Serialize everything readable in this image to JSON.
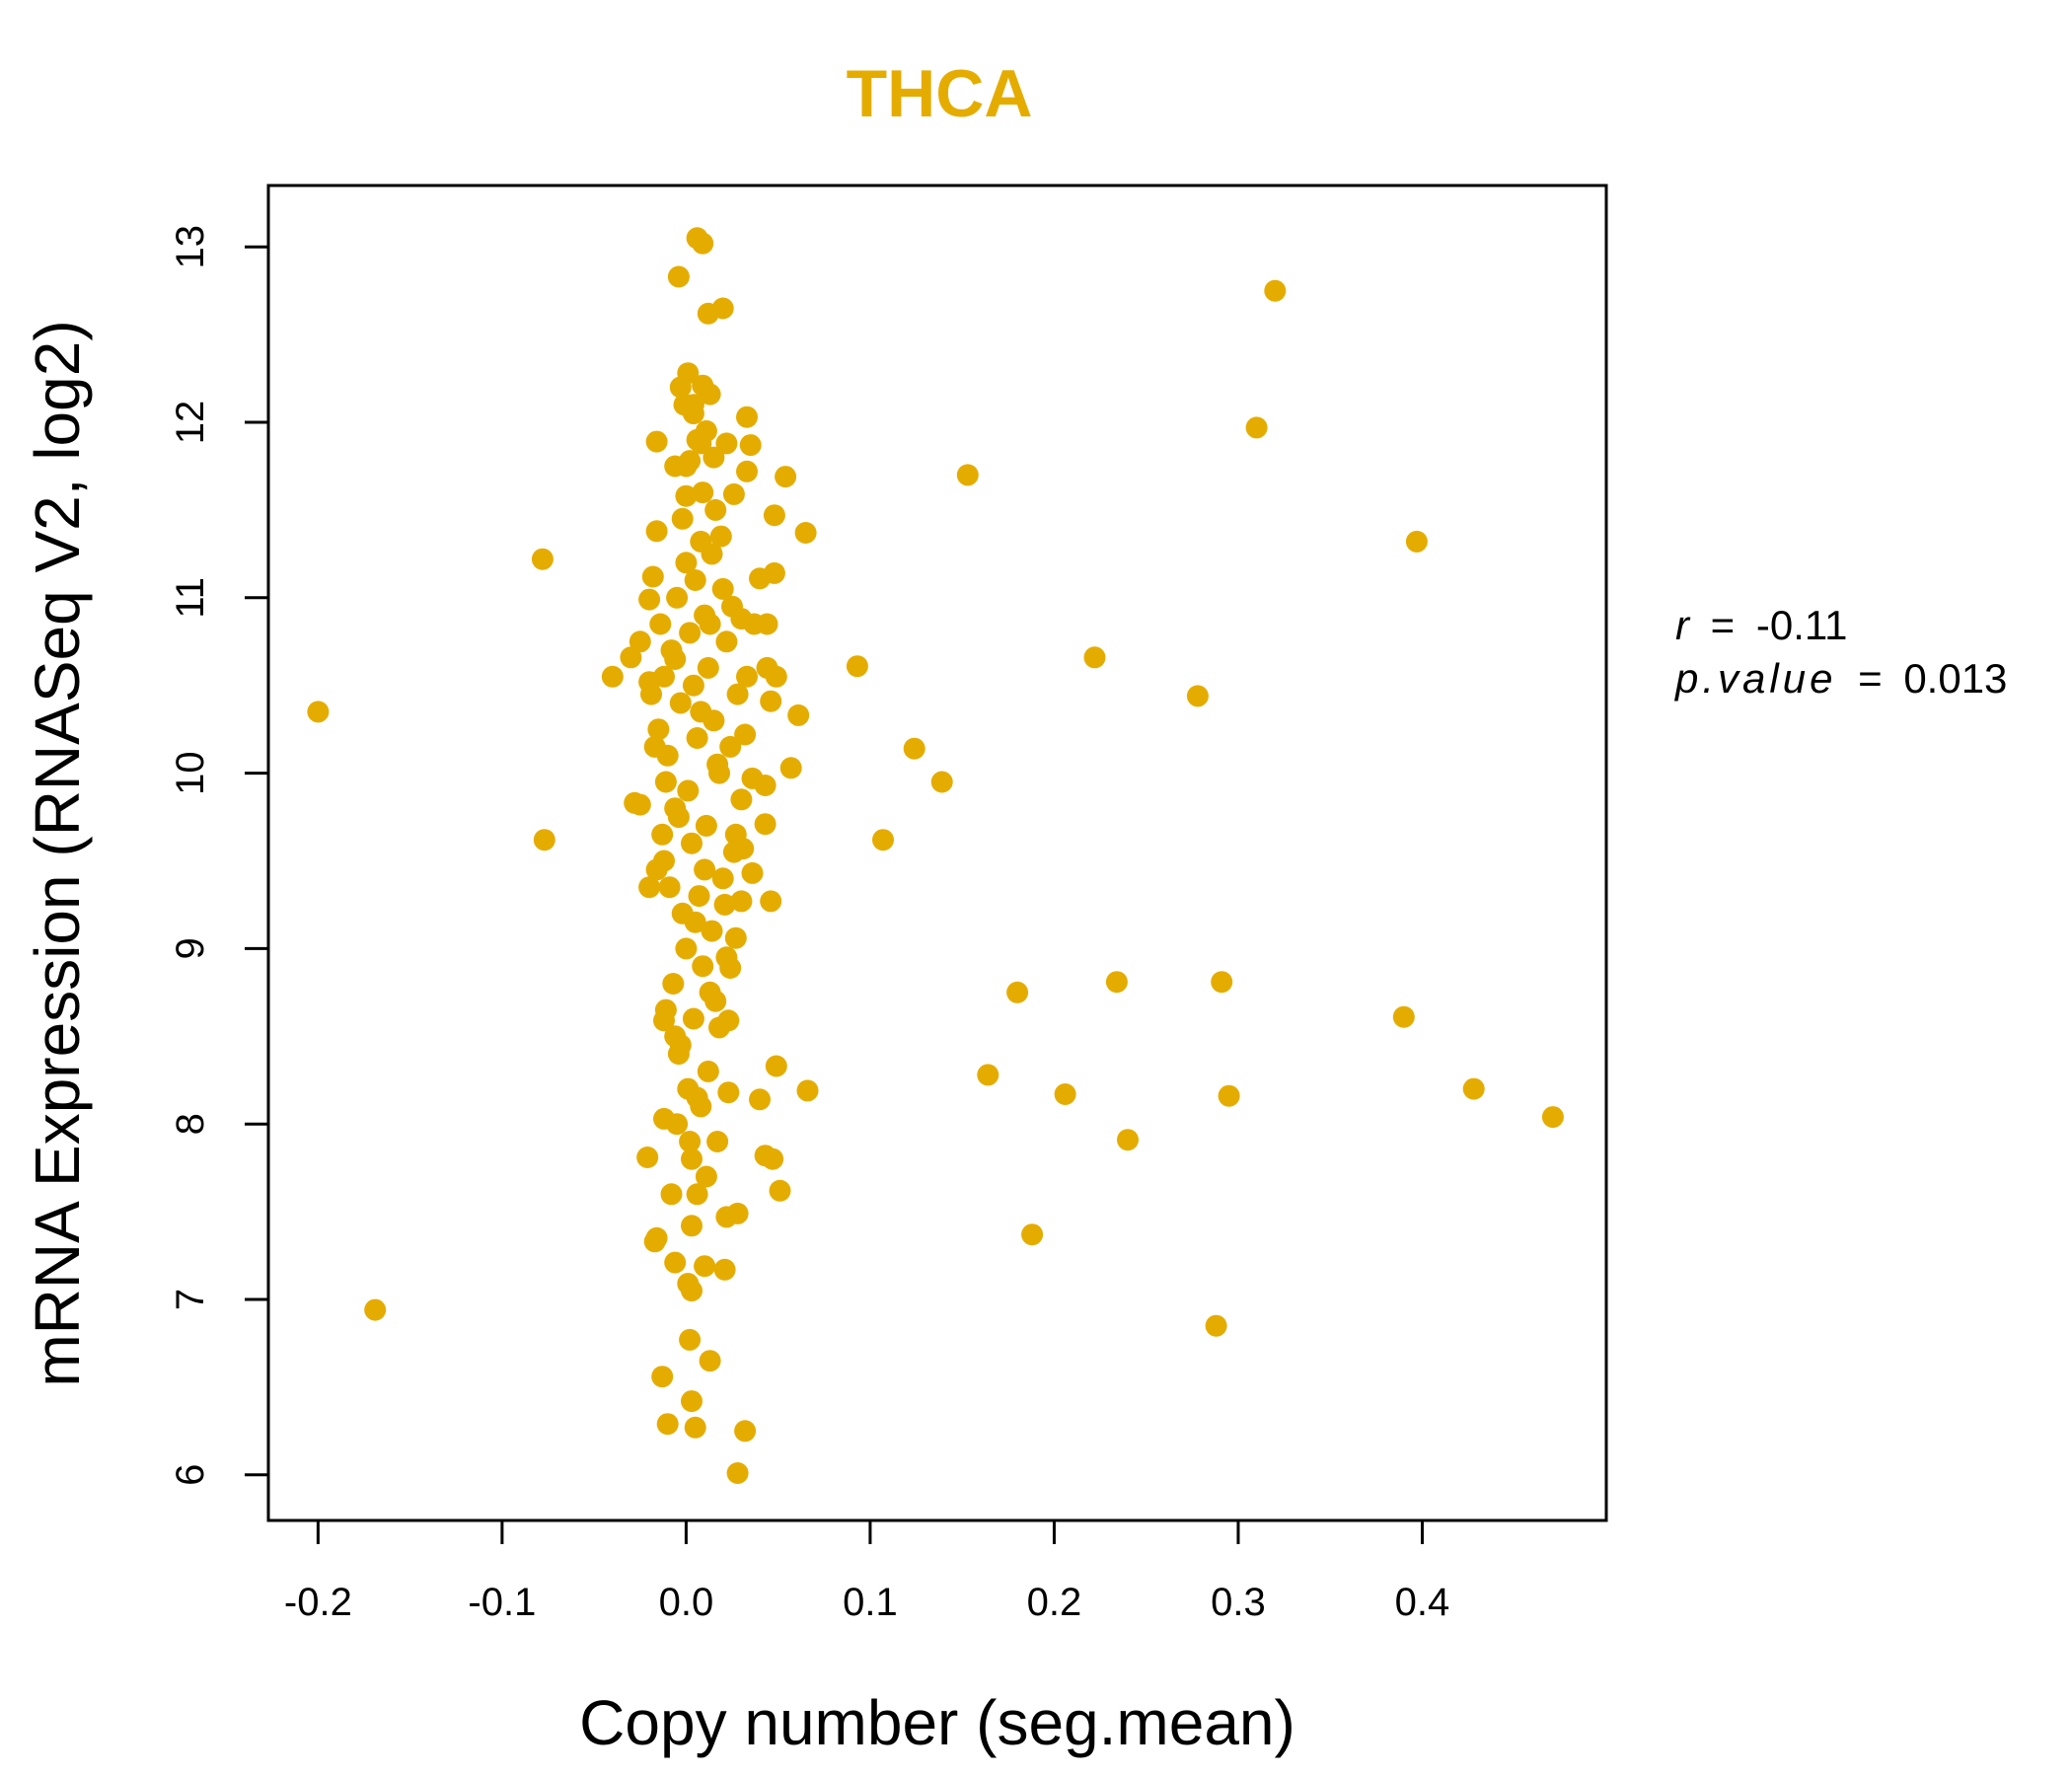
{
  "chart_data": {
    "type": "scatter",
    "title": "THCA",
    "xlabel": "Copy number (seg.mean)",
    "ylabel": "mRNA Expression (RNASeq V2, log2)",
    "xlim": [
      -0.227,
      0.5
    ],
    "ylim": [
      5.74,
      13.35
    ],
    "xticks": [
      -0.2,
      -0.1,
      0.0,
      0.1,
      0.2,
      0.3,
      0.4
    ],
    "xtick_labels": [
      "-0.2",
      "-0.1",
      "0.0",
      "0.1",
      "0.2",
      "0.3",
      "0.4"
    ],
    "yticks": [
      6,
      7,
      8,
      9,
      10,
      11,
      12,
      13
    ],
    "ytick_labels": [
      "6",
      "7",
      "8",
      "9",
      "10",
      "11",
      "12",
      "13"
    ],
    "grid": false,
    "color": "#E5AC00",
    "stats": {
      "r_label": "r",
      "r_value": "-0.11",
      "p_label": "p.value",
      "p_value": "0.013",
      "equals": "="
    },
    "points": [
      [
        -0.2,
        10.35
      ],
      [
        -0.169,
        6.94
      ],
      [
        -0.078,
        11.22
      ],
      [
        -0.077,
        9.62
      ],
      [
        0.006,
        13.05
      ],
      [
        0.009,
        13.02
      ],
      [
        -0.004,
        12.83
      ],
      [
        0.02,
        12.65
      ],
      [
        0.012,
        12.62
      ],
      [
        0.001,
        12.28
      ],
      [
        -0.003,
        12.2
      ],
      [
        0.009,
        12.21
      ],
      [
        0.013,
        12.16
      ],
      [
        -0.001,
        12.1
      ],
      [
        0.004,
        12.05
      ],
      [
        0.033,
        12.03
      ],
      [
        -0.016,
        11.89
      ],
      [
        0.008,
        11.88
      ],
      [
        0.022,
        11.88
      ],
      [
        0.035,
        11.87
      ],
      [
        0.015,
        11.8
      ],
      [
        0.002,
        11.78
      ],
      [
        -0.006,
        11.75
      ],
      [
        0.033,
        11.72
      ],
      [
        0.054,
        11.69
      ],
      [
        0.0,
        11.58
      ],
      [
        0.026,
        11.59
      ],
      [
        0.016,
        11.5
      ],
      [
        0.048,
        11.47
      ],
      [
        0.065,
        11.37
      ],
      [
        -0.016,
        11.38
      ],
      [
        0.008,
        11.32
      ],
      [
        0.04,
        11.11
      ],
      [
        0.048,
        11.14
      ],
      [
        -0.018,
        11.12
      ],
      [
        -0.02,
        10.99
      ],
      [
        0.03,
        10.88
      ],
      [
        0.044,
        10.85
      ],
      [
        -0.025,
        10.75
      ],
      [
        -0.03,
        10.66
      ],
      [
        0.044,
        10.6
      ],
      [
        0.049,
        10.55
      ],
      [
        -0.04,
        10.55
      ],
      [
        -0.02,
        10.52
      ],
      [
        0.046,
        10.41
      ],
      [
        0.061,
        10.33
      ],
      [
        0.032,
        10.22
      ],
      [
        0.057,
        10.03
      ],
      [
        0.036,
        9.97
      ],
      [
        0.043,
        9.93
      ],
      [
        -0.028,
        9.83
      ],
      [
        -0.025,
        9.82
      ],
      [
        0.043,
        9.71
      ],
      [
        0.031,
        9.57
      ],
      [
        0.036,
        9.43
      ],
      [
        0.046,
        9.27
      ],
      [
        0.03,
        9.27
      ],
      [
        -0.02,
        9.35
      ],
      [
        0.027,
        9.06
      ],
      [
        0.024,
        8.89
      ],
      [
        -0.011,
        8.65
      ],
      [
        -0.012,
        8.59
      ],
      [
        0.023,
        8.59
      ],
      [
        -0.006,
        8.5
      ],
      [
        0.049,
        8.33
      ],
      [
        0.066,
        8.19
      ],
      [
        0.04,
        8.14
      ],
      [
        0.023,
        8.18
      ],
      [
        -0.012,
        8.03
      ],
      [
        -0.021,
        7.81
      ],
      [
        0.043,
        7.82
      ],
      [
        0.047,
        7.8
      ],
      [
        0.051,
        7.62
      ],
      [
        0.022,
        7.47
      ],
      [
        0.028,
        7.49
      ],
      [
        -0.017,
        7.33
      ],
      [
        -0.016,
        7.35
      ],
      [
        0.003,
        7.42
      ],
      [
        -0.006,
        7.21
      ],
      [
        0.01,
        7.19
      ],
      [
        0.021,
        7.17
      ],
      [
        0.001,
        7.09
      ],
      [
        0.003,
        7.05
      ],
      [
        0.002,
        6.77
      ],
      [
        0.013,
        6.65
      ],
      [
        -0.013,
        6.56
      ],
      [
        0.003,
        6.42
      ],
      [
        -0.01,
        6.29
      ],
      [
        0.005,
        6.27
      ],
      [
        0.032,
        6.25
      ],
      [
        0.028,
        6.01
      ],
      [
        0.093,
        10.61
      ],
      [
        0.124,
        10.14
      ],
      [
        0.139,
        9.95
      ],
      [
        0.107,
        9.62
      ],
      [
        0.153,
        11.7
      ],
      [
        0.18,
        8.75
      ],
      [
        0.164,
        8.28
      ],
      [
        0.188,
        7.37
      ],
      [
        0.222,
        10.66
      ],
      [
        0.206,
        8.17
      ],
      [
        0.234,
        8.81
      ],
      [
        0.24,
        7.91
      ],
      [
        0.278,
        10.44
      ],
      [
        0.291,
        8.81
      ],
      [
        0.295,
        8.16
      ],
      [
        0.288,
        6.85
      ],
      [
        0.31,
        11.97
      ],
      [
        0.32,
        12.75
      ],
      [
        0.397,
        11.32
      ],
      [
        0.39,
        8.61
      ],
      [
        0.428,
        8.2
      ],
      [
        0.471,
        8.04
      ],
      [
        0.0,
        11.2
      ],
      [
        0.005,
        11.1
      ],
      [
        -0.005,
        11.0
      ],
      [
        0.01,
        10.9
      ],
      [
        0.002,
        10.8
      ],
      [
        -0.008,
        10.7
      ],
      [
        0.012,
        10.6
      ],
      [
        0.004,
        10.5
      ],
      [
        -0.003,
        10.4
      ],
      [
        0.015,
        10.3
      ],
      [
        0.006,
        10.2
      ],
      [
        -0.01,
        10.1
      ],
      [
        0.018,
        10.0
      ],
      [
        0.001,
        9.9
      ],
      [
        -0.006,
        9.8
      ],
      [
        0.011,
        9.7
      ],
      [
        0.003,
        9.6
      ],
      [
        -0.012,
        9.5
      ],
      [
        0.02,
        9.4
      ],
      [
        0.007,
        9.3
      ],
      [
        -0.002,
        9.2
      ],
      [
        0.014,
        9.1
      ],
      [
        0.0,
        9.0
      ],
      [
        0.009,
        8.9
      ],
      [
        -0.007,
        8.8
      ],
      [
        0.016,
        8.7
      ],
      [
        0.004,
        8.6
      ],
      [
        -0.004,
        8.4
      ],
      [
        0.012,
        8.3
      ],
      [
        0.001,
        8.2
      ],
      [
        0.008,
        8.1
      ],
      [
        -0.005,
        8.0
      ],
      [
        0.017,
        7.9
      ],
      [
        0.003,
        7.8
      ],
      [
        0.011,
        7.7
      ],
      [
        0.006,
        7.6
      ],
      [
        -0.008,
        7.6
      ],
      [
        0.025,
        10.95
      ],
      [
        0.022,
        10.75
      ],
      [
        0.028,
        10.45
      ],
      [
        0.024,
        10.15
      ],
      [
        0.03,
        9.85
      ],
      [
        0.026,
        9.55
      ],
      [
        0.021,
        9.25
      ],
      [
        -0.014,
        10.85
      ],
      [
        -0.012,
        10.55
      ],
      [
        -0.015,
        10.25
      ],
      [
        -0.011,
        9.95
      ],
      [
        -0.013,
        9.65
      ],
      [
        -0.009,
        9.35
      ],
      [
        0.019,
        11.35
      ],
      [
        -0.002,
        11.45
      ],
      [
        0.009,
        11.6
      ],
      [
        0.014,
        11.25
      ],
      [
        0.02,
        11.05
      ],
      [
        0.013,
        10.85
      ],
      [
        -0.006,
        10.65
      ],
      [
        0.008,
        10.35
      ],
      [
        0.017,
        10.05
      ],
      [
        -0.004,
        9.75
      ],
      [
        0.01,
        9.45
      ],
      [
        0.005,
        9.15
      ],
      [
        0.013,
        8.75
      ],
      [
        -0.003,
        8.45
      ],
      [
        0.006,
        8.15
      ],
      [
        0.002,
        7.9
      ],
      [
        0.018,
        8.55
      ],
      [
        0.022,
        8.95
      ],
      [
        0.027,
        9.65
      ],
      [
        0.033,
        10.55
      ],
      [
        0.037,
        10.85
      ],
      [
        -0.019,
        10.45
      ],
      [
        -0.017,
        10.15
      ],
      [
        -0.016,
        9.45
      ],
      [
        0.006,
        11.9
      ],
      [
        0.0,
        11.75
      ],
      [
        0.004,
        12.1
      ],
      [
        0.011,
        11.95
      ]
    ]
  }
}
